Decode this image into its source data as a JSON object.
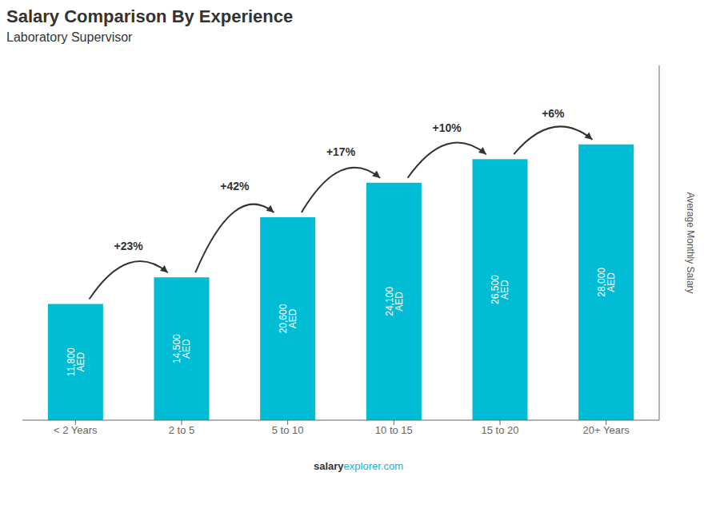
{
  "chart_data": {
    "type": "bar",
    "title": "Salary Comparison By Experience",
    "subtitle": "Laboratory Supervisor",
    "y_label": "Average Monthly Salary",
    "categories": [
      "< 2 Years",
      "2 to 5",
      "5 to 10",
      "10 to 15",
      "15 to 20",
      "20+ Years"
    ],
    "values": [
      11800,
      14500,
      20600,
      24100,
      26500,
      28000
    ],
    "value_labels": [
      "11,800 AED",
      "14,500 AED",
      "20,600 AED",
      "24,100 AED",
      "26,500 AED",
      "28,000 AED"
    ],
    "data_labels": true,
    "annotations": [
      "+23%",
      "+42%",
      "+17%",
      "+10%",
      "+6%"
    ],
    "color": "#00bcd4",
    "ylim": [
      0,
      36000
    ],
    "grid": false,
    "tick_labels": "x",
    "footer": [
      "salary",
      "explorer.com"
    ]
  }
}
